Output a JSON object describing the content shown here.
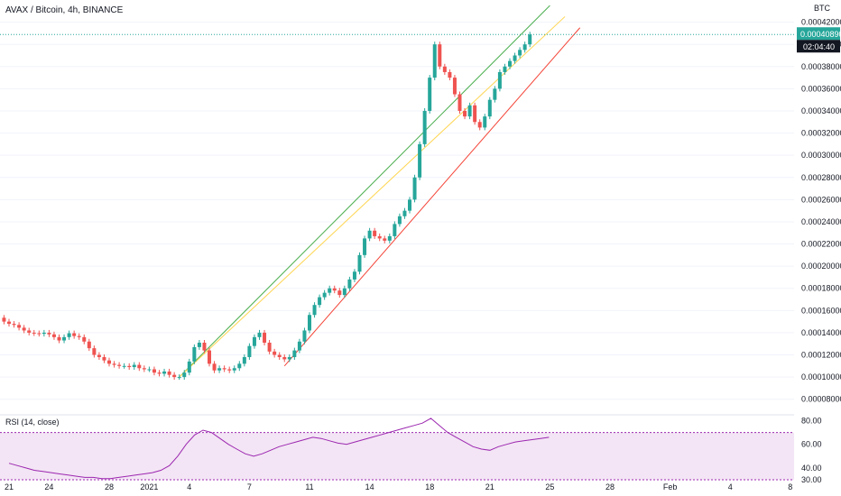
{
  "header": {
    "title": "AVAX / Bitcoin, 4h, BINANCE",
    "currency_badge": "BTC"
  },
  "price_readout": {
    "last_price": "0.00040890",
    "countdown": "02:04:40"
  },
  "rsi_panel": {
    "label": "RSI (14, close)"
  },
  "chart_data": [
    {
      "type": "candlestick",
      "symbol": "AVAX / Bitcoin",
      "interval": "4h",
      "exchange": "BINANCE",
      "ylim": [
        7e-05,
        0.00044
      ],
      "y_ticks": [
        "0.00008000",
        "0.00010000",
        "0.00012000",
        "0.00014000",
        "0.00016000",
        "0.00018000",
        "0.00020000",
        "0.00022000",
        "0.00024000",
        "0.00026000",
        "0.00028000",
        "0.00030000",
        "0.00032000",
        "0.00034000",
        "0.00036000",
        "0.00038000",
        "0.00040000",
        "0.00042000"
      ],
      "x_ticks": [
        "21",
        "24",
        "28",
        "2021",
        "4",
        "7",
        "11",
        "14",
        "18",
        "21",
        "25",
        "28",
        "Feb",
        "4",
        "8"
      ],
      "last_price": 0.0004089,
      "colors": {
        "up": "#26a69a",
        "down": "#ef5350",
        "grid": "#f0f3fa",
        "last_price": "#26a69a"
      },
      "candles_close_path": [
        [
          -1.0,
          0.0001535
        ],
        [
          -0.5,
          0.00015
        ],
        [
          0.0,
          0.000148
        ],
        [
          0.5,
          0.000147
        ],
        [
          1.0,
          0.0001445
        ],
        [
          1.5,
          0.000142
        ],
        [
          2.0,
          0.00014
        ],
        [
          2.5,
          0.0001395
        ],
        [
          3.0,
          0.000139
        ],
        [
          3.5,
          0.00014
        ],
        [
          4.0,
          0.0001385
        ],
        [
          4.5,
          0.000136
        ],
        [
          5.0,
          0.000133
        ],
        [
          5.5,
          0.000136
        ],
        [
          6.0,
          0.0001395
        ],
        [
          6.5,
          0.000137
        ],
        [
          7.0,
          0.000136
        ],
        [
          7.5,
          0.000132
        ],
        [
          8.0,
          0.000126
        ],
        [
          8.5,
          0.00012
        ],
        [
          9.0,
          0.000118
        ],
        [
          9.5,
          0.000115
        ],
        [
          10.0,
          0.000112
        ],
        [
          10.5,
          0.000111
        ],
        [
          11.0,
          0.00011
        ],
        [
          11.5,
          0.00011
        ],
        [
          12.0,
          0.000109
        ],
        [
          12.5,
          0.000111
        ],
        [
          13.0,
          0.000108
        ],
        [
          13.5,
          0.000107
        ],
        [
          14.0,
          0.000107
        ],
        [
          14.5,
          0.000104
        ],
        [
          15.0,
          0.000103
        ],
        [
          15.5,
          0.000105
        ],
        [
          16.0,
          0.000102
        ],
        [
          16.5,
          0.0001
        ],
        [
          17.0,
          0.0001
        ],
        [
          17.5,
          0.000104
        ],
        [
          18.0,
          0.000114
        ],
        [
          18.5,
          0.000127
        ],
        [
          19.0,
          0.000131
        ],
        [
          19.5,
          0.000124
        ],
        [
          20.0,
          0.000112
        ],
        [
          20.5,
          0.000106
        ],
        [
          21.0,
          0.000108
        ],
        [
          21.5,
          0.000107
        ],
        [
          22.0,
          0.000106
        ],
        [
          22.5,
          0.000108
        ],
        [
          23.0,
          0.000112
        ],
        [
          23.5,
          0.000118
        ],
        [
          24.0,
          0.000128
        ],
        [
          24.5,
          0.000136
        ],
        [
          25.0,
          0.00014
        ],
        [
          25.5,
          0.000131
        ],
        [
          26.0,
          0.000123
        ],
        [
          26.5,
          0.00012
        ],
        [
          27.0,
          0.000118
        ],
        [
          27.5,
          0.000116
        ],
        [
          28.0,
          0.000118
        ],
        [
          28.5,
          0.000124
        ],
        [
          29.0,
          0.000132
        ],
        [
          29.5,
          0.000142
        ],
        [
          30.0,
          0.000156
        ],
        [
          30.5,
          0.000165
        ],
        [
          31.0,
          0.000172
        ],
        [
          31.5,
          0.000176
        ],
        [
          32.0,
          0.00018
        ],
        [
          32.5,
          0.000178
        ],
        [
          33.0,
          0.000174
        ],
        [
          33.5,
          0.00018
        ],
        [
          34.0,
          0.000188
        ],
        [
          34.5,
          0.000195
        ],
        [
          35.0,
          0.00021
        ],
        [
          35.5,
          0.000225
        ],
        [
          36.0,
          0.000232
        ],
        [
          36.5,
          0.000227
        ],
        [
          37.0,
          0.000225
        ],
        [
          37.5,
          0.000223
        ],
        [
          38.0,
          0.000227
        ],
        [
          38.5,
          0.000238
        ],
        [
          39.0,
          0.000245
        ],
        [
          39.5,
          0.00025
        ],
        [
          40.0,
          0.00026
        ],
        [
          40.5,
          0.00028
        ],
        [
          41.0,
          0.00031
        ],
        [
          41.5,
          0.00034
        ],
        [
          42.0,
          0.00037
        ],
        [
          42.5,
          0.0004
        ],
        [
          43.0,
          0.00038
        ],
        [
          43.5,
          0.000375
        ],
        [
          44.0,
          0.00037
        ],
        [
          44.5,
          0.000355
        ],
        [
          45.0,
          0.00034
        ],
        [
          45.5,
          0.000335
        ],
        [
          46.0,
          0.000345
        ],
        [
          46.5,
          0.00033
        ],
        [
          47.0,
          0.000325
        ],
        [
          47.5,
          0.000335
        ],
        [
          48.0,
          0.00035
        ],
        [
          48.5,
          0.00036
        ],
        [
          49.0,
          0.000375
        ],
        [
          49.5,
          0.00038
        ],
        [
          50.0,
          0.000385
        ],
        [
          50.5,
          0.00039
        ],
        [
          51.0,
          0.000395
        ],
        [
          51.5,
          0.0004
        ],
        [
          52.0,
          0.0004089
        ]
      ],
      "trendlines": [
        {
          "name": "",
          "color": "#4caf50",
          "points": [
            [
              17.0,
              0.0001
            ],
            [
              54.0,
              0.000435
            ]
          ]
        },
        {
          "name": "",
          "color": "#ffd54f",
          "points": [
            [
              17.0,
              0.0001
            ],
            [
              55.5,
              0.000425
            ]
          ]
        },
        {
          "name": "",
          "color": "#f44336",
          "points": [
            [
              27.5,
              0.00011
            ],
            [
              57.0,
              0.000415
            ]
          ]
        }
      ]
    },
    {
      "type": "line",
      "name": "RSI (14, close)",
      "ylim": [
        30,
        85
      ],
      "y_ticks": [
        "30.00",
        "40.00",
        "60.00",
        "80.00"
      ],
      "band": [
        30,
        70
      ],
      "colors": {
        "line": "#9c27b0",
        "band": "#f3e5f5"
      },
      "series": [
        {
          "name": "",
          "values": [
            44,
            42,
            40,
            38,
            37,
            36,
            35,
            34,
            33,
            32,
            32,
            31,
            31,
            32,
            33,
            34,
            35,
            36,
            38,
            42,
            50,
            60,
            68,
            72,
            70,
            65,
            60,
            56,
            52,
            50,
            52,
            55,
            58,
            60,
            62,
            64,
            66,
            65,
            63,
            61,
            60,
            62,
            64,
            66,
            68,
            70,
            72,
            74,
            76,
            78,
            82,
            76,
            70,
            66,
            62,
            58,
            56,
            55,
            58,
            60,
            62,
            63,
            64,
            65,
            66
          ]
        }
      ]
    }
  ]
}
